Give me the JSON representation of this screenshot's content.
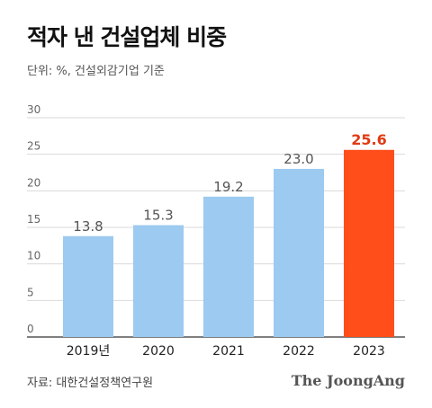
{
  "header": {
    "title": "적자 낸 건설업체 비중",
    "subtitle": "단위: %, 건설외감기업 기준"
  },
  "footer": {
    "source": "자료: 대한건설정책연구원",
    "logo": "The JoongAng"
  },
  "colors": {
    "bar": "#9ccaf0",
    "highlight": "#ff4e1a",
    "highlight_label": "#e03a12",
    "label": "#555555",
    "grid": "#d9d9d9"
  },
  "chart_data": {
    "type": "bar",
    "categories": [
      "2019년",
      "2020",
      "2021",
      "2022",
      "2023"
    ],
    "values": [
      13.8,
      15.3,
      19.2,
      23.0,
      25.6
    ],
    "value_labels": [
      "13.8",
      "15.3",
      "19.2",
      "23.0",
      "25.6"
    ],
    "highlight_index": 4,
    "ylim": [
      0,
      30
    ],
    "yticks": [
      0,
      5,
      10,
      15,
      20,
      25,
      30
    ],
    "grid": true,
    "legend": "none"
  }
}
